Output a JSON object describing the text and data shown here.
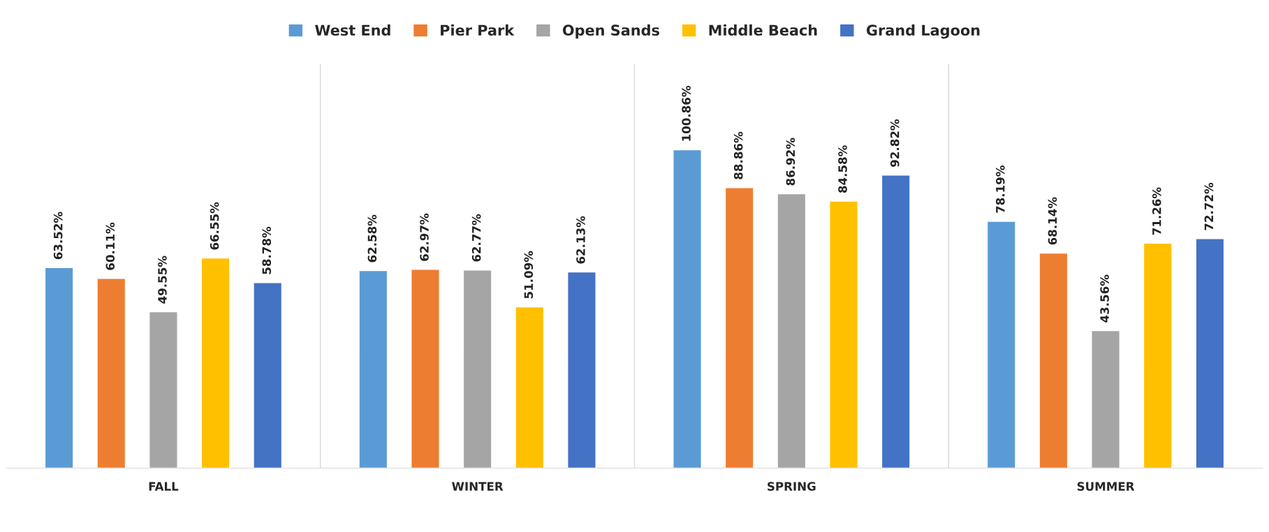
{
  "chart_data": {
    "type": "bar",
    "categories": [
      "FALL",
      "WINTER",
      "SPRING",
      "SUMMER"
    ],
    "series": [
      {
        "name": "West End",
        "color": "#5b9bd5",
        "values": [
          63.52,
          62.58,
          100.86,
          78.19
        ],
        "value_labels": [
          "63.52%",
          "62.58%",
          "100.86%",
          "78.19%"
        ]
      },
      {
        "name": "Pier Park",
        "color": "#ed7d31",
        "values": [
          60.11,
          62.97,
          88.86,
          68.14
        ],
        "value_labels": [
          "60.11%",
          "62.97%",
          "88.86%",
          "68.14%"
        ]
      },
      {
        "name": "Open Sands",
        "color": "#a5a5a5",
        "values": [
          49.55,
          62.77,
          86.92,
          43.56
        ],
        "value_labels": [
          "49.55%",
          "62.77%",
          "86.92%",
          "43.56%"
        ]
      },
      {
        "name": "Middle Beach",
        "color": "#ffc000",
        "values": [
          66.55,
          51.09,
          84.58,
          71.26
        ],
        "value_labels": [
          "66.55%",
          "51.09%",
          "84.58%",
          "71.26%"
        ]
      },
      {
        "name": "Grand Lagoon",
        "color": "#4472c4",
        "values": [
          58.78,
          62.13,
          92.82,
          72.72
        ],
        "value_labels": [
          "58.78%",
          "62.13%",
          "92.82%",
          "72.72%"
        ]
      }
    ],
    "legend": "top",
    "grid": "x"
  }
}
